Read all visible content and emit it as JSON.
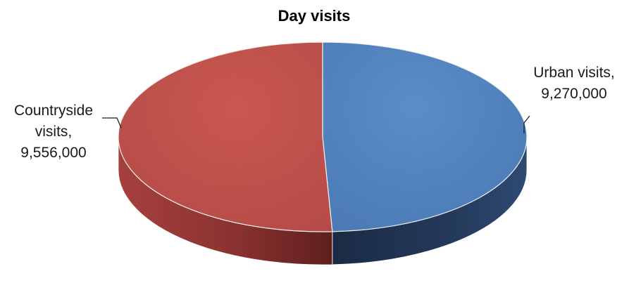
{
  "chart_data": {
    "type": "pie",
    "style": "3d",
    "title": "Day visits",
    "slices": [
      {
        "label_lines": [
          "Urban visits,",
          "9,270,000"
        ],
        "category": "Urban visits",
        "value": 9270000,
        "color": "#4f81bd",
        "side_color": "#1f3350"
      },
      {
        "label_lines": [
          "Countryside",
          "visits,",
          "9,556,000"
        ],
        "category": "Countryside visits",
        "value": 9556000,
        "color": "#c0504d",
        "side_color": "#7e2a28"
      }
    ],
    "legend": "none"
  }
}
